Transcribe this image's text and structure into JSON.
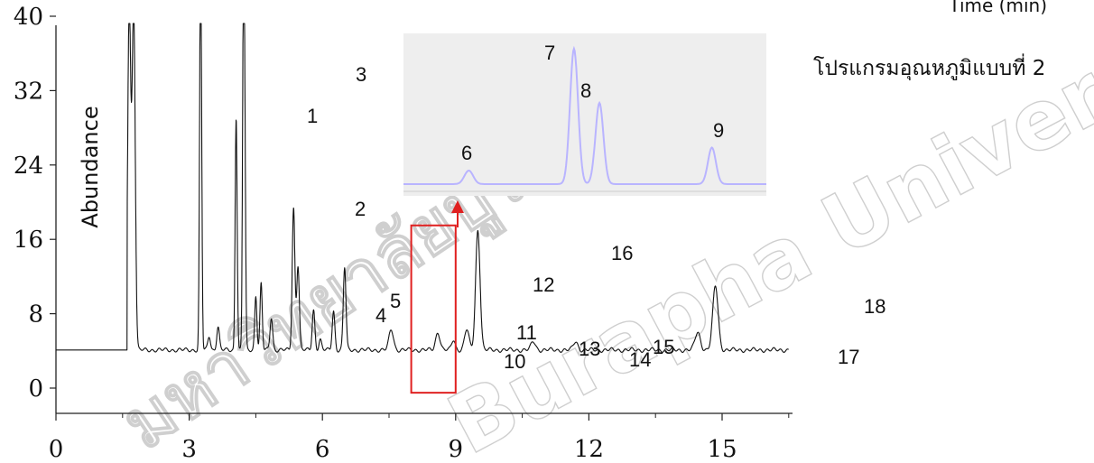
{
  "chart_data": {
    "type": "line",
    "title": "",
    "xlabel": "Time (min)",
    "ylabel": "Abundance",
    "xlim": [
      0,
      16.5
    ],
    "ylim": [
      0,
      40
    ],
    "x_ticks": [
      0,
      3,
      6,
      9,
      12,
      15
    ],
    "y_ticks": [
      0,
      8,
      16,
      24,
      32,
      40
    ],
    "grid": false,
    "baseline": 4.1,
    "peaks": [
      {
        "t": 1.65,
        "h": 41.0,
        "w": 0.035
      },
      {
        "t": 1.75,
        "h": 41.0,
        "w": 0.035
      },
      {
        "t": 3.25,
        "h": 33.6,
        "w": 0.02
      },
      {
        "t": 3.27,
        "h": 23.5,
        "w": 0.02
      },
      {
        "t": 3.45,
        "h": 5.6,
        "w": 0.03
      },
      {
        "t": 3.65,
        "h": 6.6,
        "w": 0.03
      },
      {
        "t": 4.05,
        "h": 21.5,
        "w": 0.02
      },
      {
        "t": 4.07,
        "h": 14.8,
        "w": 0.02
      },
      {
        "t": 4.22,
        "h": 38.0,
        "w": 0.02
      },
      {
        "t": 4.25,
        "h": 26.5,
        "w": 0.02
      },
      {
        "t": 4.5,
        "h": 10.0,
        "w": 0.025
      },
      {
        "t": 4.62,
        "h": 11.2,
        "w": 0.025
      },
      {
        "t": 4.85,
        "h": 7.6,
        "w": 0.03
      },
      {
        "t": 5.35,
        "h": 19.3,
        "w": 0.03
      },
      {
        "t": 5.45,
        "h": 13.2,
        "w": 0.03
      },
      {
        "t": 5.8,
        "h": 8.4,
        "w": 0.03
      },
      {
        "t": 5.95,
        "h": 5.2,
        "w": 0.03
      },
      {
        "t": 6.25,
        "h": 8.3,
        "w": 0.03
      },
      {
        "t": 6.5,
        "h": 13.0,
        "w": 0.03
      },
      {
        "t": 7.55,
        "h": 6.3,
        "w": 0.05
      },
      {
        "t": 8.6,
        "h": 6.0,
        "w": 0.05
      },
      {
        "t": 8.95,
        "h": 5.2,
        "w": 0.04
      },
      {
        "t": 9.25,
        "h": 6.3,
        "w": 0.05
      },
      {
        "t": 9.5,
        "h": 17.0,
        "w": 0.05
      },
      {
        "t": 10.75,
        "h": 5.0,
        "w": 0.05
      },
      {
        "t": 11.7,
        "h": 5.0,
        "w": 0.05
      },
      {
        "t": 14.45,
        "h": 6.0,
        "w": 0.06
      },
      {
        "t": 14.85,
        "h": 11.0,
        "w": 0.06
      }
    ],
    "peak_labels": [
      "1",
      "2",
      "3",
      "4",
      "5",
      "6",
      "7",
      "8",
      "9",
      "10",
      "11",
      "12",
      "13",
      "14",
      "15",
      "16",
      "17",
      "18"
    ],
    "inset": {
      "peak_labels": [
        "6",
        "7",
        "8",
        "9"
      ],
      "peaks": [
        {
          "t": 0.18,
          "h": 0.1
        },
        {
          "t": 0.47,
          "h": 1.0
        },
        {
          "t": 0.54,
          "h": 0.6
        },
        {
          "t": 0.85,
          "h": 0.27
        }
      ],
      "line_color": "#b9b4ff",
      "background": "#eeeeee"
    },
    "highlight": {
      "x_range": [
        8.0,
        9.0
      ],
      "y_range": [
        -0.5,
        17.5
      ],
      "color": "#e02020"
    },
    "colors": {
      "trace": "#111111",
      "axis": "#222222"
    }
  },
  "annotation": "โปรแกรมอุณหภูมิแบบที่ 2",
  "watermark": {
    "line1": "มหาวิทยาลัยบูรพา",
    "line2": "Burapha University"
  }
}
